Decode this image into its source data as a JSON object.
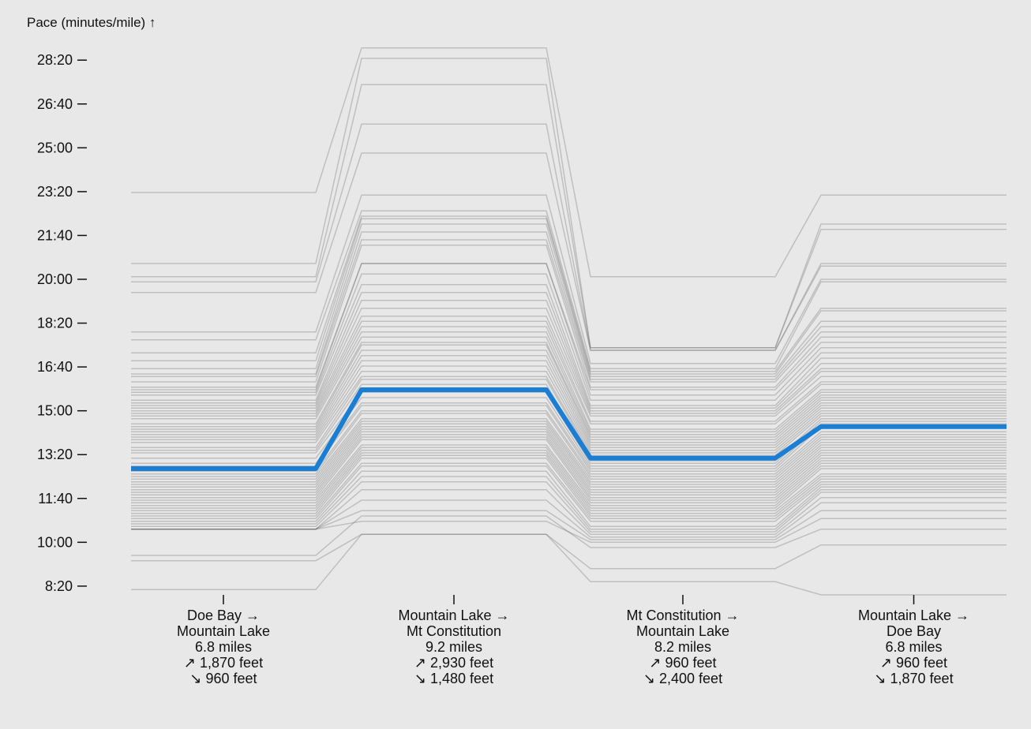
{
  "chart_data": {
    "type": "line",
    "ylabel": "Pace (minutes/mile) ↑",
    "y_tick_labels": [
      "8:20",
      "10:00",
      "11:40",
      "13:20",
      "15:00",
      "16:40",
      "18:20",
      "20:00",
      "21:40",
      "23:20",
      "25:00",
      "26:40",
      "28:20"
    ],
    "y_ticks_minutes": [
      8.333,
      10,
      11.667,
      13.333,
      15,
      16.667,
      18.333,
      20,
      21.667,
      23.333,
      25,
      26.667,
      28.333
    ],
    "ylim": [
      8.0,
      29.0
    ],
    "categories": [
      {
        "lines": [
          "Doe Bay →",
          "Mountain Lake",
          "6.8 miles",
          "↗ 1,870 feet",
          "↘ 960 feet"
        ]
      },
      {
        "lines": [
          "Mountain Lake →",
          "Mt Constitution",
          "9.2 miles",
          "↗ 2,930 feet",
          "↘ 1,480 feet"
        ]
      },
      {
        "lines": [
          "Mt Constitution →",
          "Mountain Lake",
          "8.2 miles",
          "↗ 960 feet",
          "↘ 2,400 feet"
        ]
      },
      {
        "lines": [
          "Mountain Lake →",
          "Doe Bay",
          "6.8 miles",
          "↗ 960 feet",
          "↘ 1,870 feet"
        ]
      }
    ],
    "highlight": {
      "values": [
        12.8,
        15.8,
        13.2,
        14.4
      ],
      "color": "#1a7fd4"
    },
    "series": [
      {
        "values": [
          23.3,
          28.8,
          20.1,
          23.2
        ]
      },
      {
        "values": [
          20.6,
          28.4,
          17.4,
          22.1
        ]
      },
      {
        "values": [
          20.1,
          27.4,
          17.4,
          21.9
        ]
      },
      {
        "values": [
          19.9,
          25.9,
          17.3,
          20.6
        ]
      },
      {
        "values": [
          19.5,
          24.8,
          17.3,
          20.5
        ]
      },
      {
        "values": [
          18.0,
          23.2,
          16.8,
          20.0
        ]
      },
      {
        "values": [
          17.7,
          22.6,
          16.6,
          19.9
        ]
      },
      {
        "values": [
          17.2,
          22.4,
          16.5,
          18.9
        ]
      },
      {
        "values": [
          16.9,
          22.3,
          16.4,
          18.8
        ]
      },
      {
        "values": [
          16.6,
          22.1,
          16.3,
          18.4
        ]
      },
      {
        "values": [
          16.4,
          21.8,
          16.2,
          18.2
        ]
      },
      {
        "values": [
          16.3,
          21.5,
          16.1,
          18.0
        ]
      },
      {
        "values": [
          16.1,
          21.3,
          15.9,
          17.8
        ]
      },
      {
        "values": [
          15.9,
          20.6,
          15.8,
          17.6
        ]
      },
      {
        "values": [
          15.8,
          20.6,
          15.6,
          17.4
        ]
      },
      {
        "values": [
          15.7,
          20.2,
          15.4,
          17.2
        ]
      },
      {
        "values": [
          15.6,
          19.8,
          15.2,
          17.0
        ]
      },
      {
        "values": [
          15.4,
          19.5,
          15.1,
          16.8
        ]
      },
      {
        "values": [
          15.3,
          19.2,
          15.0,
          16.6
        ]
      },
      {
        "values": [
          15.2,
          18.9,
          14.9,
          16.5
        ]
      },
      {
        "values": [
          15.1,
          18.6,
          14.8,
          16.3
        ]
      },
      {
        "values": [
          15.0,
          18.4,
          14.6,
          16.1
        ]
      },
      {
        "values": [
          14.9,
          18.2,
          14.5,
          16.0
        ]
      },
      {
        "values": [
          14.8,
          18.0,
          14.3,
          15.8
        ]
      },
      {
        "values": [
          14.7,
          17.8,
          14.2,
          15.7
        ]
      },
      {
        "values": [
          14.5,
          17.6,
          14.1,
          15.6
        ]
      },
      {
        "values": [
          14.4,
          17.5,
          14.0,
          15.5
        ]
      },
      {
        "values": [
          14.3,
          17.3,
          13.9,
          15.4
        ]
      },
      {
        "values": [
          14.2,
          17.1,
          13.8,
          15.3
        ]
      },
      {
        "values": [
          14.1,
          16.9,
          13.7,
          15.2
        ]
      },
      {
        "values": [
          14.0,
          16.7,
          13.6,
          15.1
        ]
      },
      {
        "values": [
          13.9,
          16.5,
          13.5,
          15.0
        ]
      },
      {
        "values": [
          13.8,
          16.3,
          13.4,
          14.9
        ]
      },
      {
        "values": [
          13.6,
          16.2,
          13.3,
          14.8
        ]
      },
      {
        "values": [
          13.5,
          16.0,
          13.1,
          14.7
        ]
      },
      {
        "values": [
          13.4,
          15.7,
          13.0,
          14.6
        ]
      },
      {
        "values": [
          13.2,
          15.5,
          12.9,
          14.5
        ]
      },
      {
        "values": [
          13.0,
          15.3,
          12.8,
          14.4
        ]
      },
      {
        "values": [
          12.9,
          15.2,
          12.7,
          14.2
        ]
      },
      {
        "values": [
          12.7,
          15.0,
          12.6,
          14.1
        ]
      },
      {
        "values": [
          12.6,
          14.9,
          12.5,
          14.0
        ]
      },
      {
        "values": [
          12.5,
          14.7,
          12.4,
          13.9
        ]
      },
      {
        "values": [
          12.4,
          14.6,
          12.3,
          13.8
        ]
      },
      {
        "values": [
          12.3,
          14.5,
          12.2,
          13.7
        ]
      },
      {
        "values": [
          12.2,
          14.4,
          12.1,
          13.6
        ]
      },
      {
        "values": [
          12.1,
          14.3,
          12.0,
          13.5
        ]
      },
      {
        "values": [
          12.0,
          14.2,
          11.9,
          13.4
        ]
      },
      {
        "values": [
          11.9,
          14.1,
          11.8,
          13.3
        ]
      },
      {
        "values": [
          11.8,
          14.0,
          11.7,
          13.2
        ]
      },
      {
        "values": [
          11.7,
          13.9,
          11.6,
          13.1
        ]
      },
      {
        "values": [
          11.6,
          13.7,
          11.5,
          13.0
        ]
      },
      {
        "values": [
          11.5,
          13.6,
          11.4,
          12.9
        ]
      },
      {
        "values": [
          11.4,
          13.5,
          11.3,
          12.8
        ]
      },
      {
        "values": [
          11.3,
          13.4,
          11.2,
          12.6
        ]
      },
      {
        "values": [
          11.2,
          13.3,
          11.1,
          12.5
        ]
      },
      {
        "values": [
          11.1,
          13.2,
          11.0,
          12.4
        ]
      },
      {
        "values": [
          11.0,
          13.0,
          10.9,
          12.3
        ]
      },
      {
        "values": [
          10.9,
          12.9,
          10.8,
          12.2
        ]
      },
      {
        "values": [
          10.8,
          12.7,
          10.6,
          12.1
        ]
      },
      {
        "values": [
          10.7,
          12.5,
          10.5,
          12.0
        ]
      },
      {
        "values": [
          10.6,
          12.3,
          10.4,
          11.9
        ]
      },
      {
        "values": [
          10.5,
          12.0,
          10.3,
          11.7
        ]
      },
      {
        "values": [
          10.5,
          11.6,
          10.2,
          11.5
        ]
      },
      {
        "values": [
          10.5,
          11.2,
          10.1,
          11.2
        ]
      },
      {
        "values": [
          10.5,
          10.8,
          10.0,
          10.9
        ]
      },
      {
        "values": [
          9.5,
          11.0,
          9.8,
          10.5
        ]
      },
      {
        "values": [
          9.3,
          10.3,
          9.0,
          9.9
        ]
      },
      {
        "values": [
          8.2,
          10.3,
          8.5,
          8.0
        ]
      }
    ]
  }
}
